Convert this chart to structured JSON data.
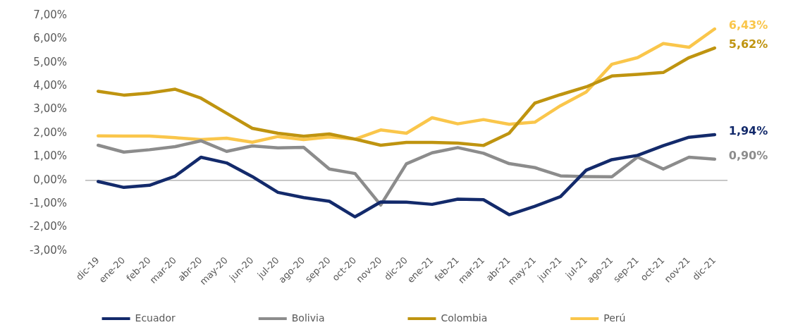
{
  "chart_data": {
    "type": "line",
    "categories": [
      "dic-19",
      "ene-20",
      "feb-20",
      "mar-20",
      "abr-20",
      "may-20",
      "jun-20",
      "jul-20",
      "ago-20",
      "sep-20",
      "oct-20",
      "nov-20",
      "dic-20",
      "ene-21",
      "feb-21",
      "mar-21",
      "abr-21",
      "may-21",
      "jun-21",
      "jul-21",
      "ago-21",
      "sep-21",
      "oct-21",
      "nov-21",
      "dic-21"
    ],
    "series": [
      {
        "name": "Ecuador",
        "color": "#132a6b",
        "values": [
          -0.05,
          -0.3,
          -0.21,
          0.18,
          0.98,
          0.74,
          0.16,
          -0.51,
          -0.73,
          -0.89,
          -1.55,
          -0.92,
          -0.93,
          -1.02,
          -0.8,
          -0.82,
          -1.46,
          -1.1,
          -0.69,
          0.43,
          0.88,
          1.06,
          1.47,
          1.83,
          1.94
        ],
        "value_labels": [
          null,
          null,
          null,
          null,
          null,
          null,
          null,
          null,
          null,
          null,
          null,
          null,
          null,
          null,
          null,
          null,
          null,
          null,
          null,
          null,
          null,
          null,
          null,
          null,
          "1,94%"
        ]
      },
      {
        "name": "Bolivia",
        "color": "#8c8c8c",
        "values": [
          1.49,
          1.2,
          1.3,
          1.43,
          1.68,
          1.23,
          1.46,
          1.38,
          1.4,
          0.48,
          0.29,
          -1.05,
          0.7,
          1.17,
          1.39,
          1.15,
          0.71,
          0.54,
          0.19,
          0.16,
          0.15,
          0.99,
          0.48,
          0.98,
          0.9
        ],
        "value_labels": [
          null,
          null,
          null,
          null,
          null,
          null,
          null,
          null,
          null,
          null,
          null,
          null,
          null,
          null,
          null,
          null,
          null,
          null,
          null,
          null,
          null,
          null,
          null,
          null,
          "0,90%"
        ]
      },
      {
        "name": "Colombia",
        "color": "#bf9410",
        "values": [
          3.78,
          3.62,
          3.71,
          3.87,
          3.49,
          2.85,
          2.21,
          2.0,
          1.87,
          1.97,
          1.75,
          1.49,
          1.61,
          1.61,
          1.58,
          1.48,
          2.0,
          3.28,
          3.64,
          3.97,
          4.43,
          4.5,
          4.58,
          5.21,
          5.62
        ],
        "value_labels": [
          null,
          null,
          null,
          null,
          null,
          null,
          null,
          null,
          null,
          null,
          null,
          null,
          null,
          null,
          null,
          null,
          null,
          null,
          null,
          null,
          null,
          null,
          null,
          null,
          "5,62%"
        ]
      },
      {
        "name": "Perú",
        "color": "#fac64b",
        "values": [
          1.89,
          1.88,
          1.88,
          1.81,
          1.73,
          1.79,
          1.62,
          1.86,
          1.73,
          1.84,
          1.75,
          2.14,
          2.0,
          2.66,
          2.4,
          2.58,
          2.38,
          2.47,
          3.17,
          3.75,
          4.93,
          5.21,
          5.81,
          5.65,
          6.43
        ],
        "value_labels": [
          null,
          null,
          null,
          null,
          null,
          null,
          null,
          null,
          null,
          null,
          null,
          null,
          null,
          null,
          null,
          null,
          null,
          null,
          null,
          null,
          null,
          null,
          null,
          null,
          "6,43%"
        ]
      }
    ],
    "ylim": [
      -3,
      7
    ],
    "yticks": [
      {
        "value": -3,
        "label": "-3,00%"
      },
      {
        "value": -2,
        "label": "-2,00%"
      },
      {
        "value": -1,
        "label": "-1,00%"
      },
      {
        "value": 0,
        "label": "0,00%"
      },
      {
        "value": 1,
        "label": "1,00%"
      },
      {
        "value": 2,
        "label": "2,00%"
      },
      {
        "value": 3,
        "label": "3,00%"
      },
      {
        "value": 4,
        "label": "4,00%"
      },
      {
        "value": 5,
        "label": "5,00%"
      },
      {
        "value": 6,
        "label": "6,00%"
      },
      {
        "value": 7,
        "label": "7,00%"
      }
    ],
    "ref_lines": [
      {
        "axis": "y",
        "value": 0,
        "color": "#a6a6a6"
      }
    ],
    "grid": false,
    "legend": "bottom",
    "marker": "none",
    "line_style": "solid"
  }
}
